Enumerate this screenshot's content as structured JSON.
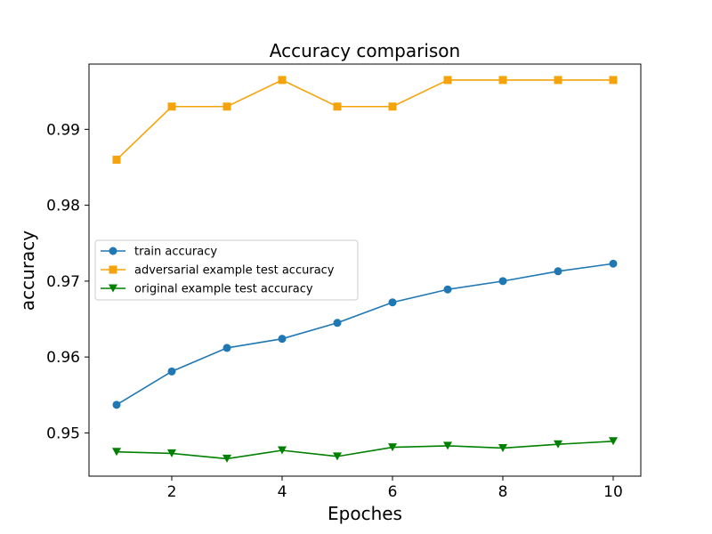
{
  "chart_data": {
    "type": "line",
    "title": "Accuracy comparison",
    "xlabel": "Epoches",
    "ylabel": "accuracy",
    "x": [
      1,
      2,
      3,
      4,
      5,
      6,
      7,
      8,
      9,
      10
    ],
    "xlim": [
      0.5,
      10.5
    ],
    "ylim": [
      0.9443,
      0.9986
    ],
    "xticks": [
      2,
      4,
      6,
      8,
      10
    ],
    "xtick_labels": [
      "2",
      "4",
      "6",
      "8",
      "10"
    ],
    "yticks": [
      0.95,
      0.96,
      0.97,
      0.98,
      0.99
    ],
    "ytick_labels": [
      "0.95",
      "0.96",
      "0.97",
      "0.98",
      "0.99"
    ],
    "grid": false,
    "legend_position": "center-left",
    "series": [
      {
        "name": "train accuracy",
        "color": "#1f77b4",
        "marker": "circle",
        "values": [
          0.9537,
          0.9581,
          0.9612,
          0.9624,
          0.9645,
          0.9672,
          0.9689,
          0.97,
          0.9713,
          0.9723
        ]
      },
      {
        "name": "adversarial example test accuracy",
        "color": "#f5a30a",
        "marker": "square",
        "values": [
          0.986,
          0.993,
          0.993,
          0.9965,
          0.993,
          0.993,
          0.9965,
          0.9965,
          0.9965,
          0.9965
        ]
      },
      {
        "name": "original example test accuracy",
        "color": "#008000",
        "marker": "triangle-down",
        "values": [
          0.9475,
          0.9473,
          0.9466,
          0.9477,
          0.9469,
          0.9481,
          0.9483,
          0.948,
          0.9485,
          0.9489
        ]
      }
    ]
  }
}
